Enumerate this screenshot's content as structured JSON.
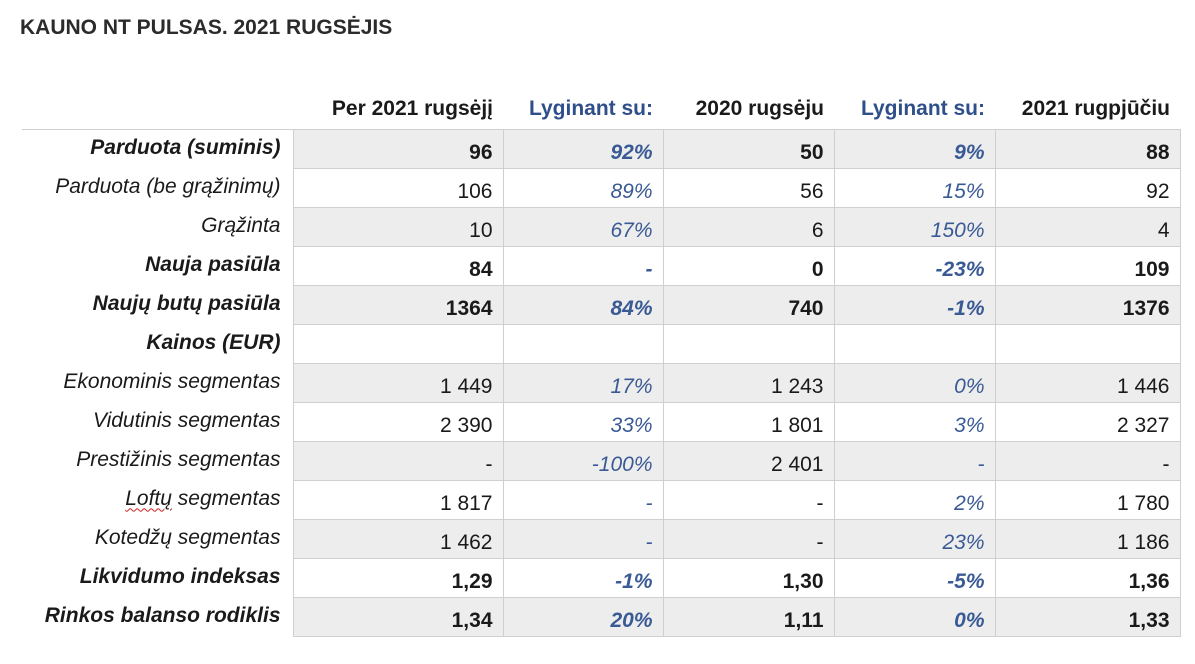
{
  "title": "KAUNO NT PULSAS. 2021 RUGSĖJIS",
  "headers": [
    "Per 2021 rugsėjį",
    "Lyginant su:",
    "2020 rugsėju",
    "Lyginant su:",
    "2021 rugpjūčiu"
  ],
  "rows": [
    {
      "label": "Parduota (suminis)",
      "v1": "96",
      "p1": "92%",
      "v2": "50",
      "p2": "9%",
      "v3": "88"
    },
    {
      "label": "Parduota (be grąžinimų)",
      "v1": "106",
      "p1": "89%",
      "v2": "56",
      "p2": "15%",
      "v3": "92"
    },
    {
      "label": "Grąžinta",
      "v1": "10",
      "p1": "67%",
      "v2": "6",
      "p2": "150%",
      "v3": "4"
    },
    {
      "label": "Nauja pasiūla",
      "v1": "84",
      "p1": "-",
      "v2": "0",
      "p2": "-23%",
      "v3": "109"
    },
    {
      "label": "Naujų butų pasiūla",
      "v1": "1364",
      "p1": "84%",
      "v2": "740",
      "p2": "-1%",
      "v3": "1376"
    },
    {
      "label": "Kainos (EUR)",
      "v1": "",
      "p1": "",
      "v2": "",
      "p2": "",
      "v3": ""
    },
    {
      "label": "Ekonominis segmentas",
      "v1": "1 449",
      "p1": "17%",
      "v2": "1 243",
      "p2": "0%",
      "v3": "1 446"
    },
    {
      "label": "Vidutinis segmentas",
      "v1": "2 390",
      "p1": "33%",
      "v2": "1 801",
      "p2": "3%",
      "v3": "2 327"
    },
    {
      "label": "Prestižinis segmentas",
      "v1": "-",
      "p1": "-100%",
      "v2": "2 401",
      "p2": "-",
      "v3": "-"
    },
    {
      "label_part1": "Loftų",
      "label_part2": " segmentas",
      "v1": "1 817",
      "p1": "-",
      "v2": "-",
      "p2": "2%",
      "v3": "1 780"
    },
    {
      "label": "Kotedžų segmentas",
      "v1": "1 462",
      "p1": "-",
      "v2": "-",
      "p2": "23%",
      "v3": "1 186"
    },
    {
      "label": "Likvidumo indeksas",
      "v1": "1,29",
      "p1": "-1%",
      "v2": "1,30",
      "p2": "-5%",
      "v3": "1,36"
    },
    {
      "label": "Rinkos balanso rodiklis",
      "v1": "1,34",
      "p1": "20%",
      "v2": "1,11",
      "p2": "0%",
      "v3": "1,33"
    }
  ],
  "colors": {
    "accent_blue": "#3a5a95",
    "header_blue": "#2f4f8a",
    "row_shade": "#ededed",
    "grid_line": "#cfcfcf"
  }
}
